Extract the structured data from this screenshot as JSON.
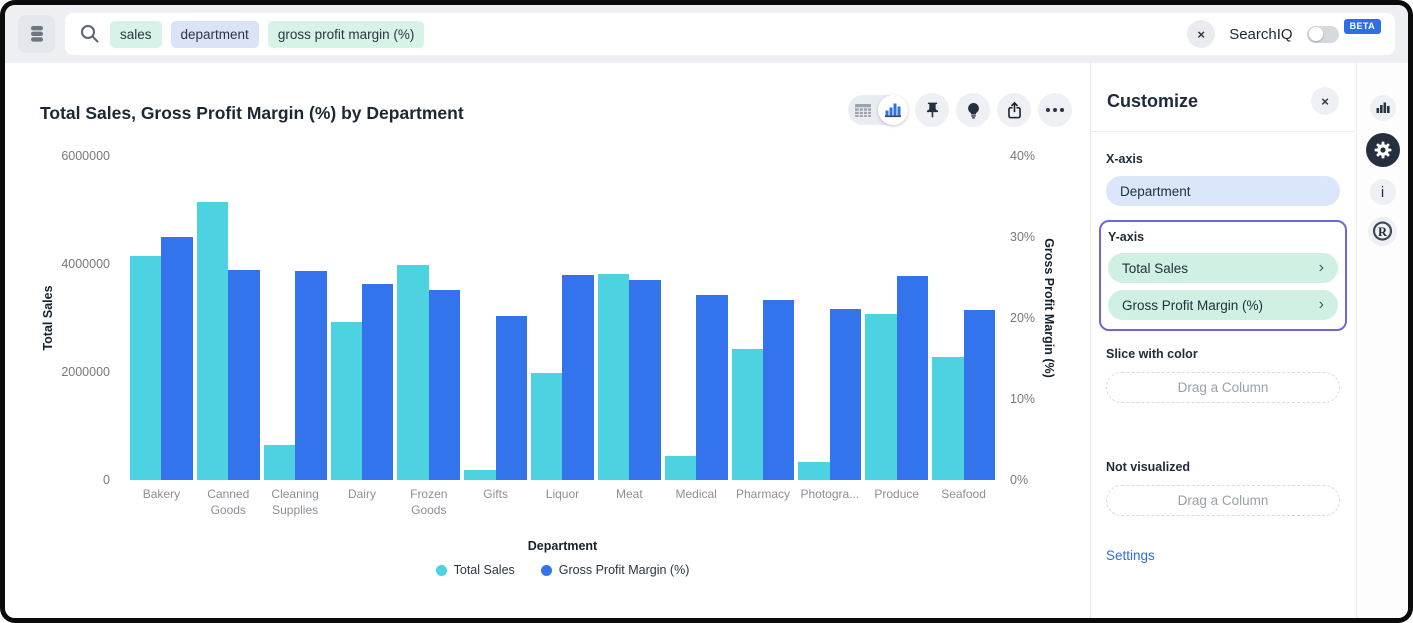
{
  "topbar": {
    "search_tokens": [
      {
        "text": "sales",
        "type": "measure"
      },
      {
        "text": "department",
        "type": "attribute"
      },
      {
        "text": "gross profit margin (%)",
        "type": "measure"
      }
    ],
    "searchiq_label": "SearchIQ",
    "searchiq_toggle_on": false,
    "beta_label": "BETA"
  },
  "chart_data": {
    "type": "bar",
    "title": "Total Sales, Gross Profit Margin (%) by Department",
    "categories": [
      "Bakery",
      "Canned Goods",
      "Cleaning Supplies",
      "Dairy",
      "Frozen Goods",
      "Gifts",
      "Liquor",
      "Meat",
      "Medical",
      "Pharmacy",
      "Photogra...",
      "Produce",
      "Seafood"
    ],
    "series": [
      {
        "name": "Total Sales",
        "axis": "left",
        "color": "#4dd2e1",
        "values": [
          4150000,
          5150000,
          640000,
          2920000,
          3980000,
          190000,
          1990000,
          3810000,
          450000,
          2420000,
          340000,
          3070000,
          2280000
        ]
      },
      {
        "name": "Gross Profit Margin (%)",
        "axis": "right",
        "color": "#3374ec",
        "values": [
          30,
          25.9,
          25.8,
          24.2,
          23.5,
          20.2,
          25.3,
          24.7,
          22.9,
          22.2,
          21.1,
          25.2,
          21
        ]
      }
    ],
    "left_axis": {
      "label": "Total Sales",
      "max": 6000000,
      "ticks": [
        "0",
        "2000000",
        "4000000",
        "6000000"
      ]
    },
    "right_axis": {
      "label": "Gross Profit Margin (%)",
      "max": 40,
      "ticks": [
        "0%",
        "10%",
        "20%",
        "30%",
        "40%"
      ]
    },
    "xlabel": "Department",
    "legend_position": "bottom",
    "grid": false
  },
  "customize": {
    "title": "Customize",
    "x_axis": {
      "label": "X-axis",
      "value": "Department"
    },
    "y_axis": {
      "label": "Y-axis",
      "values": [
        "Total Sales",
        "Gross Profit Margin (%)"
      ]
    },
    "slice": {
      "label": "Slice with color",
      "placeholder": "Drag a Column"
    },
    "not_visualized": {
      "label": "Not visualized",
      "placeholder": "Drag a Column"
    },
    "settings_label": "Settings"
  },
  "colors": {
    "teal": "#4dd2e1",
    "blue": "#3374ec",
    "highlight_border": "#6b68dd",
    "beta_badge": "#2e6fe8",
    "link": "#2d6ce5",
    "token_mint": "#d7f2e6",
    "token_lavender": "#dbe3f9"
  }
}
